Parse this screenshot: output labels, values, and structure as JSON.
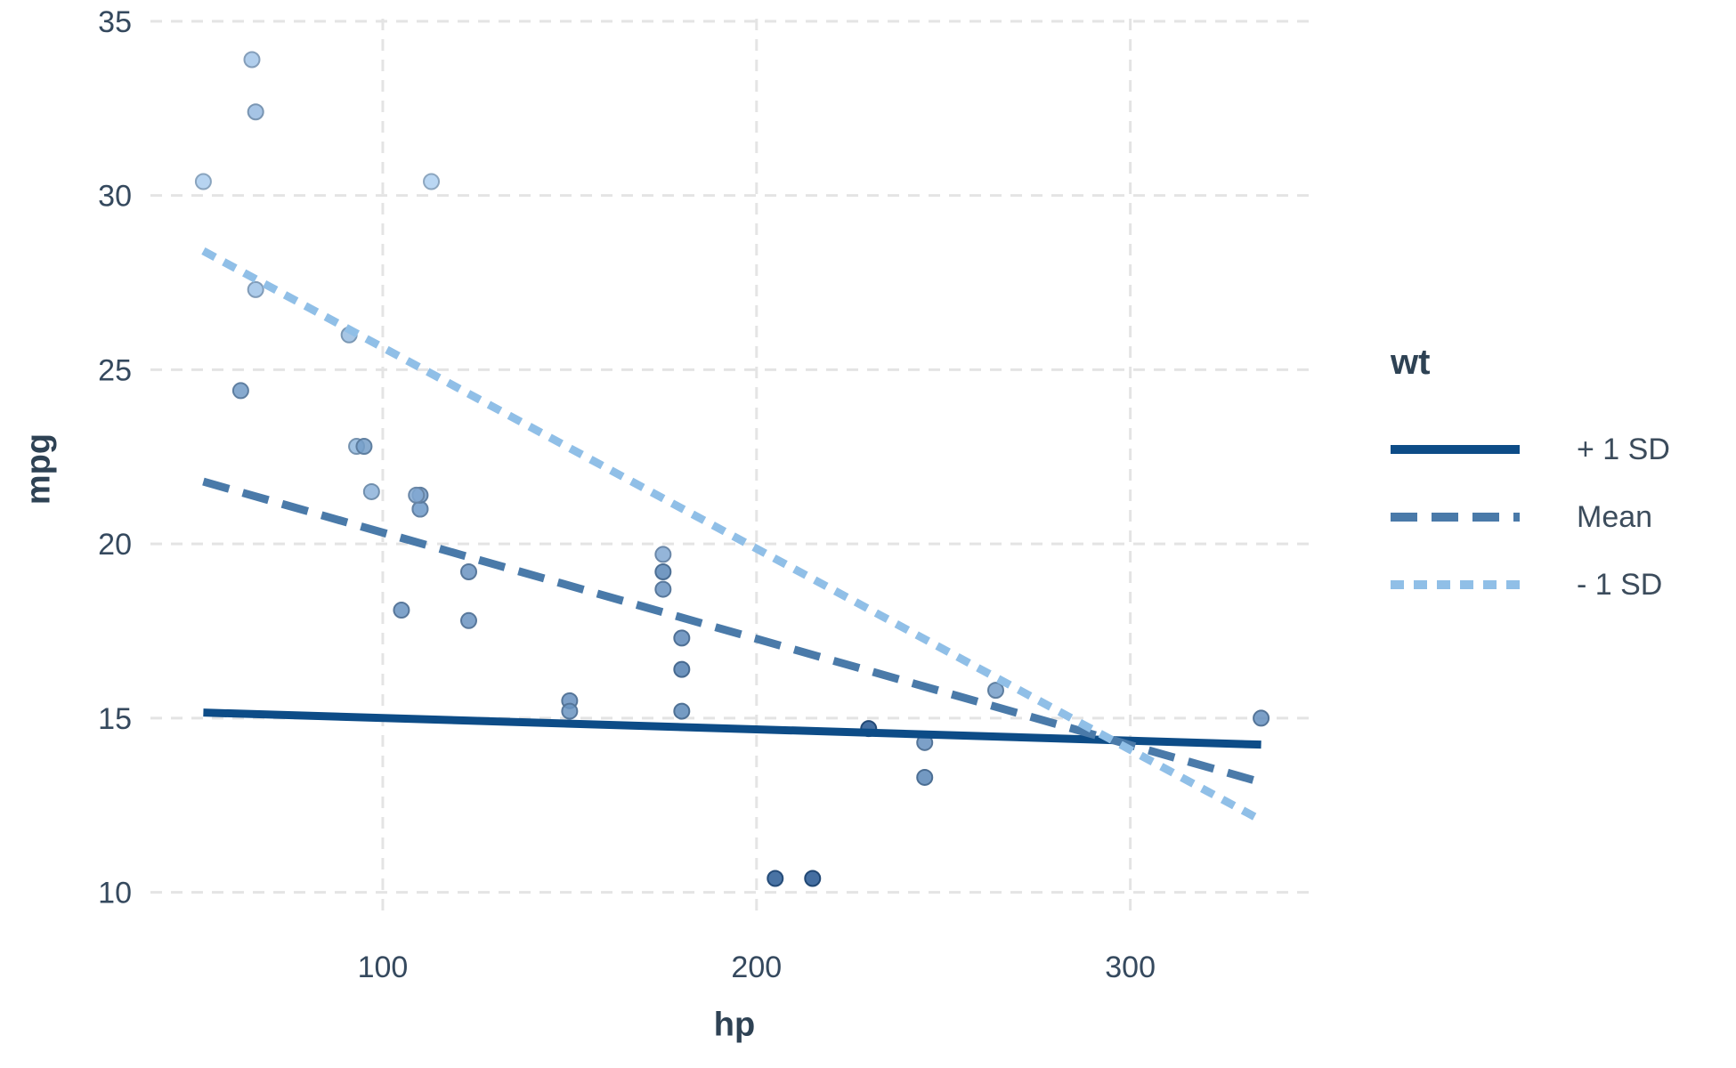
{
  "chart_data": {
    "type": "scatter",
    "title": "",
    "xlabel": "hp",
    "ylabel": "mpg",
    "x_ticks": [
      100,
      200,
      300
    ],
    "y_ticks": [
      10,
      15,
      20,
      25,
      30,
      35
    ],
    "xlim": [
      37.85,
      349.15
    ],
    "ylim": [
      9.225,
      35.075
    ],
    "grid": "dashed",
    "grid_color": "#e4e4e4",
    "tick_label_color": "#35495e",
    "legend": {
      "title": "wt",
      "position": "right"
    },
    "point_style": {
      "radius": 8.5,
      "fill_opacity": 0.85,
      "color_scale": {
        "variable": "wt",
        "wt_min": 1.513,
        "wt_max": 5.424,
        "light": "#aed0f1",
        "dark": "#235590"
      }
    },
    "points": [
      {
        "hp": 110,
        "mpg": 21.0,
        "wt": 2.62
      },
      {
        "hp": 110,
        "mpg": 21.0,
        "wt": 2.875
      },
      {
        "hp": 93,
        "mpg": 22.8,
        "wt": 2.32
      },
      {
        "hp": 110,
        "mpg": 21.4,
        "wt": 3.215
      },
      {
        "hp": 175,
        "mpg": 18.7,
        "wt": 3.44
      },
      {
        "hp": 105,
        "mpg": 18.1,
        "wt": 3.46
      },
      {
        "hp": 245,
        "mpg": 14.3,
        "wt": 3.57
      },
      {
        "hp": 62,
        "mpg": 24.4,
        "wt": 3.19
      },
      {
        "hp": 95,
        "mpg": 22.8,
        "wt": 3.15
      },
      {
        "hp": 123,
        "mpg": 19.2,
        "wt": 3.44
      },
      {
        "hp": 123,
        "mpg": 17.8,
        "wt": 3.44
      },
      {
        "hp": 180,
        "mpg": 16.4,
        "wt": 4.07
      },
      {
        "hp": 180,
        "mpg": 17.3,
        "wt": 3.73
      },
      {
        "hp": 180,
        "mpg": 15.2,
        "wt": 3.78
      },
      {
        "hp": 205,
        "mpg": 10.4,
        "wt": 5.25
      },
      {
        "hp": 215,
        "mpg": 10.4,
        "wt": 5.424
      },
      {
        "hp": 230,
        "mpg": 14.7,
        "wt": 5.345
      },
      {
        "hp": 66,
        "mpg": 32.4,
        "wt": 2.2
      },
      {
        "hp": 52,
        "mpg": 30.4,
        "wt": 1.615
      },
      {
        "hp": 65,
        "mpg": 33.9,
        "wt": 1.835
      },
      {
        "hp": 97,
        "mpg": 21.5,
        "wt": 2.465
      },
      {
        "hp": 150,
        "mpg": 15.5,
        "wt": 3.52
      },
      {
        "hp": 150,
        "mpg": 15.2,
        "wt": 3.435
      },
      {
        "hp": 245,
        "mpg": 13.3,
        "wt": 3.84
      },
      {
        "hp": 175,
        "mpg": 19.2,
        "wt": 3.845
      },
      {
        "hp": 66,
        "mpg": 27.3,
        "wt": 1.935
      },
      {
        "hp": 91,
        "mpg": 26.0,
        "wt": 2.14
      },
      {
        "hp": 113,
        "mpg": 30.4,
        "wt": 1.513
      },
      {
        "hp": 264,
        "mpg": 15.8,
        "wt": 3.17
      },
      {
        "hp": 175,
        "mpg": 19.7,
        "wt": 2.77
      },
      {
        "hp": 335,
        "mpg": 15.0,
        "wt": 3.57
      },
      {
        "hp": 109,
        "mpg": 21.4,
        "wt": 2.78
      }
    ],
    "series": [
      {
        "name": "+ 1 SD",
        "line_style": "solid",
        "color": "#0d4c87",
        "x": [
          52,
          335
        ],
        "y": [
          15.16,
          14.24
        ]
      },
      {
        "name": "Mean",
        "line_style": "dashed",
        "color": "#4a7aa9",
        "x": [
          52,
          335
        ],
        "y": [
          21.79,
          13.16
        ]
      },
      {
        "name": "- 1 SD",
        "line_style": "dotted",
        "color": "#90bfe7",
        "x": [
          52,
          335
        ],
        "y": [
          28.41,
          12.07
        ]
      }
    ]
  }
}
